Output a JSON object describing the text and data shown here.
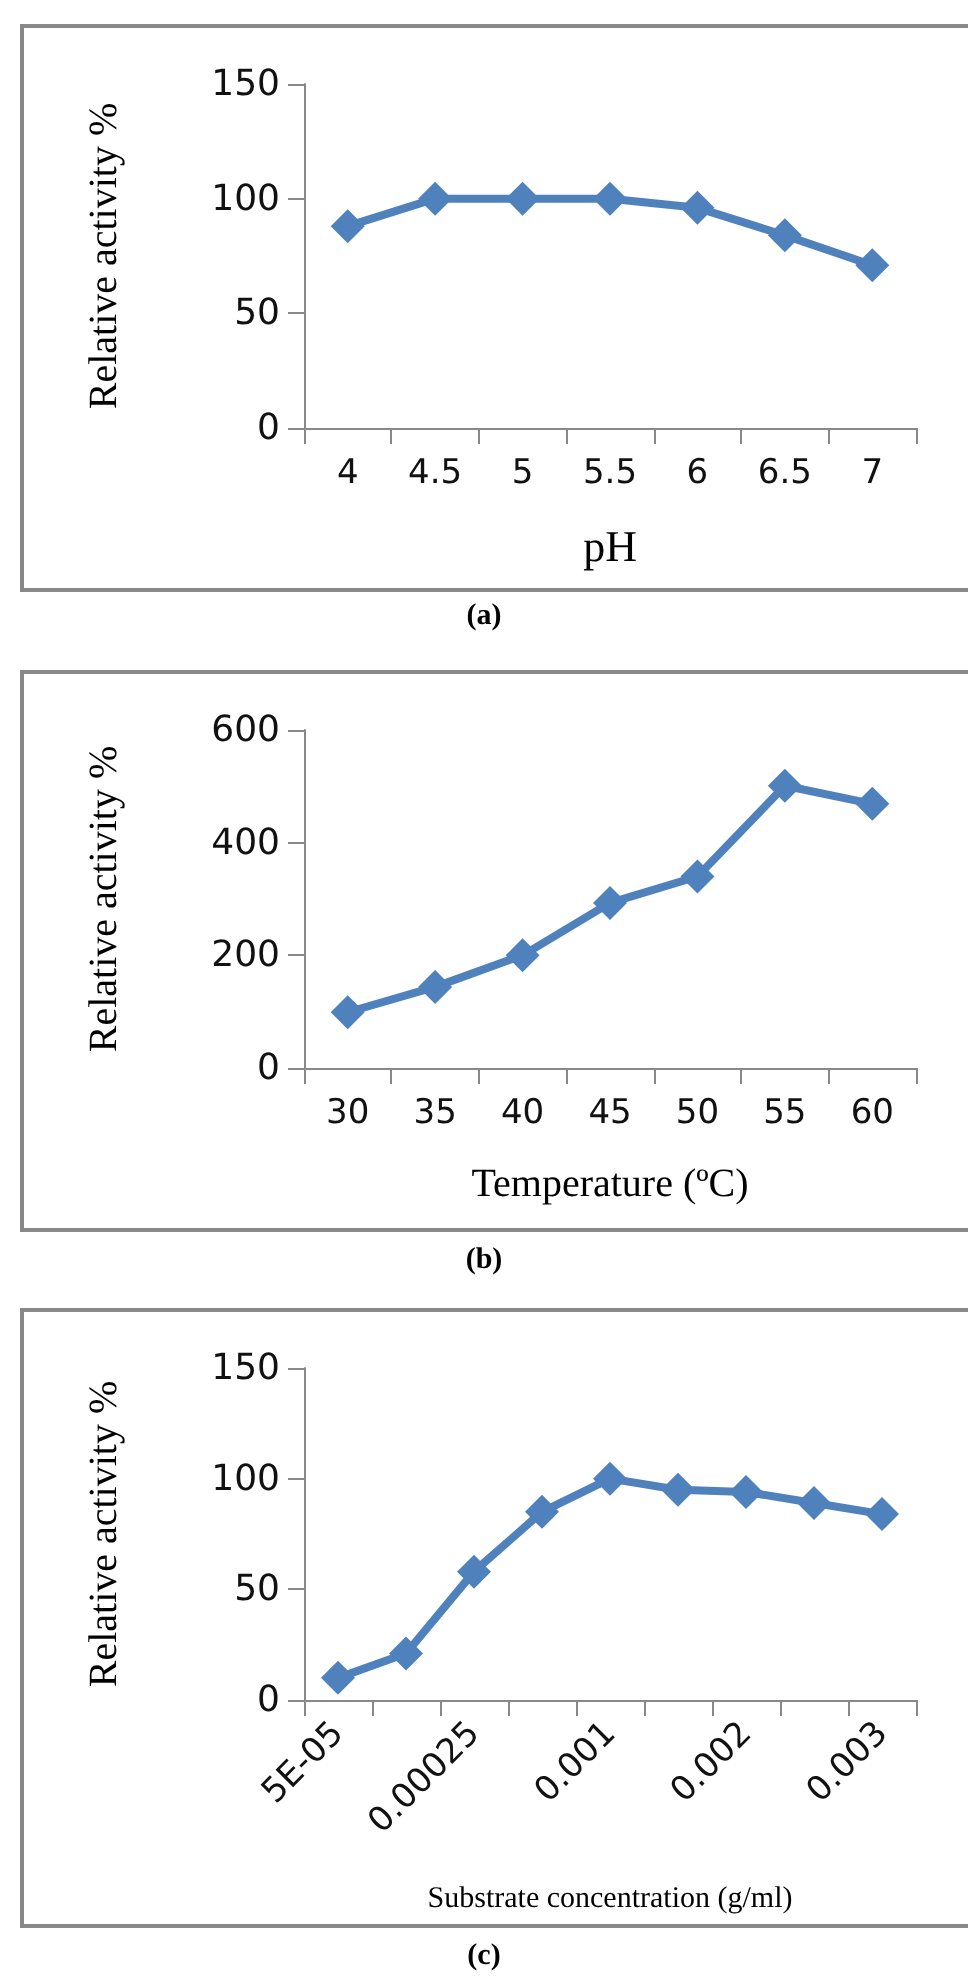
{
  "chart_data": [
    {
      "type": "line",
      "title": "(a)",
      "xlabel": "pH",
      "ylabel": "Relative activity %",
      "categories": [
        "4",
        "4.5",
        "5",
        "5.5",
        "6",
        "6.5",
        "7"
      ],
      "series": [
        {
          "color": "#4f81bd",
          "values": [
            88,
            100,
            100,
            100,
            96,
            84,
            71
          ]
        }
      ],
      "ylim": [
        0,
        150
      ],
      "yticks": [
        0,
        50,
        100,
        150
      ],
      "marker": "diamond",
      "line_style": "solid"
    },
    {
      "type": "line",
      "title": "(b)",
      "xlabel": "Temperature (ºC)",
      "ylabel": "Relative activity %",
      "categories": [
        "30",
        "35",
        "40",
        "45",
        "50",
        "55",
        "60"
      ],
      "series": [
        {
          "color": "#4f81bd",
          "values": [
            99,
            144,
            200,
            293,
            340,
            501,
            469
          ]
        }
      ],
      "ylim": [
        0,
        600
      ],
      "yticks": [
        0,
        200,
        400,
        600
      ],
      "marker": "diamond",
      "line_style": "solid"
    },
    {
      "type": "line",
      "title": "(c)",
      "xlabel": "Substrate concentration (g/ml)",
      "ylabel": "Relative activity %",
      "categories": [
        "5E-05",
        null,
        "0.00025",
        null,
        "0.001",
        null,
        "0.002",
        null,
        "0.003"
      ],
      "series": [
        {
          "color": "#4f81bd",
          "values": [
            10,
            21,
            58,
            85,
            100,
            95,
            94,
            89,
            84
          ]
        }
      ],
      "ylim": [
        0,
        150
      ],
      "yticks": [
        0,
        50,
        100,
        150
      ],
      "marker": "diamond",
      "line_style": "solid"
    }
  ]
}
